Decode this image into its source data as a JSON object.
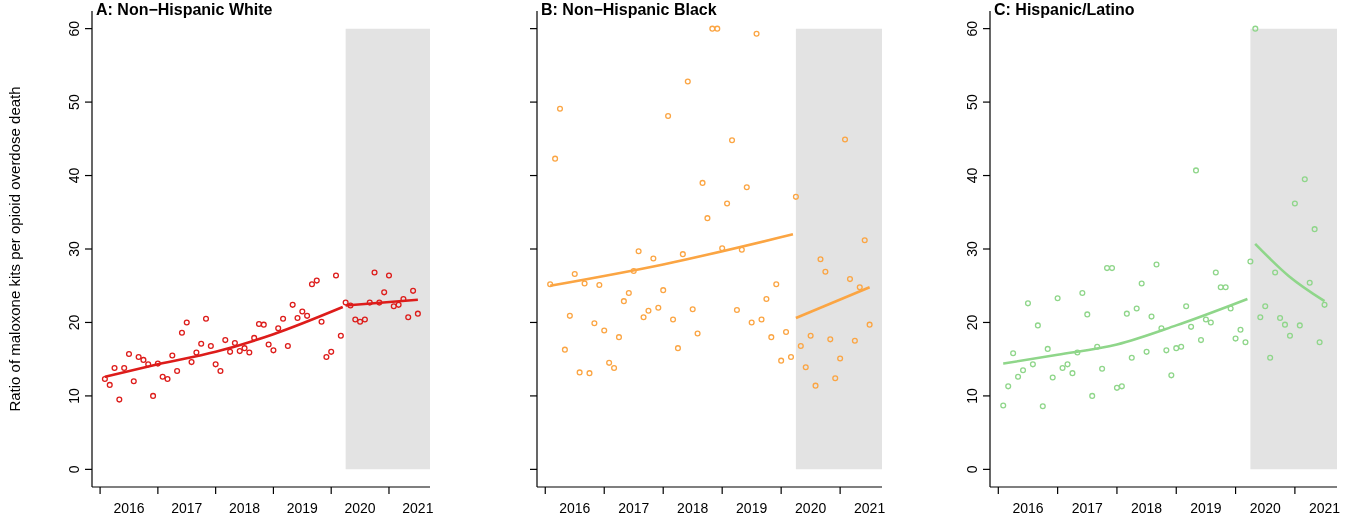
{
  "chart_data": [
    {
      "type": "scatter",
      "title": "A: Non−Hispanic White",
      "ylabel": "Ratio of maloxone kits per opioid overdose death",
      "x": [
        2016.083,
        2016.167,
        2016.25,
        2016.333,
        2016.417,
        2016.5,
        2016.583,
        2016.667,
        2016.75,
        2016.833,
        2016.917,
        2017,
        2017.083,
        2017.167,
        2017.25,
        2017.333,
        2017.417,
        2017.5,
        2017.583,
        2017.667,
        2017.75,
        2017.833,
        2017.917,
        2018,
        2018.083,
        2018.167,
        2018.25,
        2018.333,
        2018.417,
        2018.5,
        2018.583,
        2018.667,
        2018.75,
        2018.833,
        2018.917,
        2019,
        2019.083,
        2019.167,
        2019.25,
        2019.333,
        2019.417,
        2019.5,
        2019.583,
        2019.667,
        2019.75,
        2019.833,
        2019.917,
        2020,
        2020.083,
        2020.167,
        2020.25,
        2020.333,
        2020.417,
        2020.5,
        2020.583,
        2020.667,
        2020.75,
        2020.833,
        2020.917,
        2021,
        2021.083,
        2021.167,
        2021.25,
        2021.333,
        2021.417,
        2021.5
      ],
      "series": [
        {
          "marker": "circle",
          "color": "#dd1c1a",
          "values": [
            12.3,
            11.5,
            13.8,
            9.5,
            13.8,
            15.7,
            12.0,
            15.3,
            14.9,
            14.3,
            10.0,
            14.4,
            12.6,
            12.3,
            15.5,
            13.4,
            18.6,
            20.0,
            14.6,
            15.9,
            17.1,
            20.5,
            16.8,
            14.3,
            13.4,
            17.6,
            16.0,
            17.2,
            16.1,
            16.5,
            15.9,
            17.9,
            19.8,
            19.7,
            17.0,
            16.2,
            19.2,
            20.5,
            16.8,
            22.4,
            20.6,
            21.5,
            20.9,
            25.2,
            25.7,
            20.1,
            15.3,
            16.0,
            26.4,
            18.2,
            22.7,
            22.3,
            20.4,
            20.1,
            20.4,
            22.7,
            26.8,
            22.7,
            24.1,
            26.4,
            22.2,
            22.4,
            23.2,
            20.7,
            24.3,
            21.2
          ]
        },
        {
          "type": "line",
          "color": "#dd1c1a",
          "x": [
            2016.083,
            2017,
            2018,
            2019,
            2020.2
          ],
          "values": [
            12.6,
            14.3,
            16.0,
            18.4,
            22.1
          ]
        },
        {
          "type": "line",
          "color": "#dd1c1a",
          "x": [
            2020.25,
            2021.5
          ],
          "values": [
            22.3,
            23.1
          ]
        }
      ],
      "xlim": [
        2015.86,
        2021.71
      ],
      "xticks": [
        {
          "value": 2016,
          "label": null
        },
        {
          "value": 2016.5,
          "label": "2016"
        },
        {
          "value": 2017,
          "label": null
        },
        {
          "value": 2017.5,
          "label": "2017"
        },
        {
          "value": 2018,
          "label": null
        },
        {
          "value": 2018.5,
          "label": "2018"
        },
        {
          "value": 2019,
          "label": null
        },
        {
          "value": 2019.5,
          "label": "2019"
        },
        {
          "value": 2020,
          "label": null
        },
        {
          "value": 2020.5,
          "label": "2020"
        },
        {
          "value": 2021,
          "label": null
        },
        {
          "value": 2021.5,
          "label": "2021"
        }
      ],
      "ylim": [
        -2.4,
        62.4
      ],
      "yticks": [
        0,
        10,
        20,
        30,
        40,
        50,
        60
      ],
      "bands": [
        {
          "axis": "x",
          "from": 2020.25,
          "to": 2021.71,
          "color": "#e3e3e3"
        }
      ]
    },
    {
      "type": "scatter",
      "title": "B: Non−Hispanic Black",
      "tick_labels": "x",
      "x": [
        2016.083,
        2016.167,
        2016.25,
        2016.333,
        2016.417,
        2016.5,
        2016.583,
        2016.667,
        2016.75,
        2016.833,
        2016.917,
        2017,
        2017.083,
        2017.167,
        2017.25,
        2017.333,
        2017.417,
        2017.5,
        2017.583,
        2017.667,
        2017.75,
        2017.833,
        2017.917,
        2018,
        2018.083,
        2018.167,
        2018.25,
        2018.333,
        2018.417,
        2018.5,
        2018.583,
        2018.667,
        2018.75,
        2018.833,
        2018.917,
        2019,
        2019.083,
        2019.167,
        2019.25,
        2019.333,
        2019.417,
        2019.5,
        2019.583,
        2019.667,
        2019.75,
        2019.833,
        2019.917,
        2020,
        2020.083,
        2020.167,
        2020.25,
        2020.333,
        2020.417,
        2020.5,
        2020.583,
        2020.667,
        2020.75,
        2020.833,
        2020.917,
        2021,
        2021.083,
        2021.167,
        2021.25,
        2021.333,
        2021.417,
        2021.5
      ],
      "series": [
        {
          "marker": "circle",
          "color": "#fba543",
          "values": [
            25.2,
            42.3,
            49.1,
            16.3,
            20.9,
            26.6,
            13.2,
            25.3,
            13.1,
            19.9,
            25.1,
            18.9,
            14.5,
            13.8,
            18.0,
            22.9,
            24.0,
            27.0,
            29.7,
            20.7,
            21.6,
            28.7,
            22.0,
            24.4,
            48.1,
            20.4,
            16.5,
            29.3,
            52.8,
            21.8,
            18.5,
            39.0,
            34.2,
            60.0,
            60.0,
            30.1,
            36.2,
            44.8,
            21.7,
            29.9,
            38.4,
            20.0,
            59.3,
            20.4,
            23.2,
            18.0,
            25.2,
            14.8,
            18.7,
            15.3,
            37.1,
            16.8,
            13.9,
            18.2,
            11.4,
            28.6,
            26.9,
            17.7,
            12.4,
            15.1,
            44.9,
            25.9,
            17.5,
            24.8,
            31.2,
            19.7
          ]
        },
        {
          "type": "line",
          "color": "#fba543",
          "x": [
            2016.083,
            2018,
            2020.2
          ],
          "values": [
            25.0,
            27.9,
            32.0
          ]
        },
        {
          "type": "line",
          "color": "#fba543",
          "x": [
            2020.25,
            2021.5
          ],
          "values": [
            20.6,
            24.8
          ]
        }
      ],
      "xlim": [
        2015.86,
        2021.71
      ],
      "xticks": [
        {
          "value": 2016,
          "label": null
        },
        {
          "value": 2016.5,
          "label": "2016"
        },
        {
          "value": 2017,
          "label": null
        },
        {
          "value": 2017.5,
          "label": "2017"
        },
        {
          "value": 2018,
          "label": null
        },
        {
          "value": 2018.5,
          "label": "2018"
        },
        {
          "value": 2019,
          "label": null
        },
        {
          "value": 2019.5,
          "label": "2019"
        },
        {
          "value": 2020,
          "label": null
        },
        {
          "value": 2020.5,
          "label": "2020"
        },
        {
          "value": 2021,
          "label": null
        },
        {
          "value": 2021.5,
          "label": "2021"
        }
      ],
      "ylim": [
        -2.4,
        62.4
      ],
      "yticks": [
        0,
        10,
        20,
        30,
        40,
        50,
        60
      ],
      "bands": [
        {
          "axis": "x",
          "from": 2020.25,
          "to": 2021.71,
          "color": "#e3e3e3"
        }
      ]
    },
    {
      "type": "scatter",
      "title": "C: Hispanic/Latino",
      "x": [
        2016.083,
        2016.167,
        2016.25,
        2016.333,
        2016.417,
        2016.5,
        2016.583,
        2016.667,
        2016.75,
        2016.833,
        2016.917,
        2017,
        2017.083,
        2017.167,
        2017.25,
        2017.333,
        2017.417,
        2017.5,
        2017.583,
        2017.667,
        2017.75,
        2017.833,
        2017.917,
        2018,
        2018.083,
        2018.167,
        2018.25,
        2018.333,
        2018.417,
        2018.5,
        2018.583,
        2018.667,
        2018.75,
        2018.833,
        2018.917,
        2019,
        2019.083,
        2019.167,
        2019.25,
        2019.333,
        2019.417,
        2019.5,
        2019.583,
        2019.667,
        2019.75,
        2019.833,
        2019.917,
        2020,
        2020.083,
        2020.167,
        2020.25,
        2020.333,
        2020.417,
        2020.5,
        2020.583,
        2020.667,
        2020.75,
        2020.833,
        2020.917,
        2021,
        2021.083,
        2021.167,
        2021.25,
        2021.333,
        2021.417,
        2021.5
      ],
      "series": [
        {
          "marker": "circle",
          "color": "#8fd68a",
          "values": [
            8.7,
            11.3,
            15.8,
            12.6,
            13.5,
            22.6,
            14.3,
            19.6,
            8.6,
            16.4,
            12.5,
            23.3,
            13.8,
            14.3,
            13.1,
            15.9,
            24.0,
            21.1,
            10.0,
            16.7,
            13.7,
            27.4,
            27.4,
            11.1,
            11.3,
            21.2,
            15.2,
            21.9,
            25.3,
            16.0,
            20.8,
            27.9,
            19.2,
            16.2,
            12.8,
            16.5,
            16.7,
            22.2,
            19.4,
            40.7,
            17.6,
            20.4,
            20.0,
            26.8,
            24.8,
            24.8,
            21.9,
            17.8,
            19.0,
            17.3,
            28.3,
            60.0,
            20.7,
            22.2,
            15.2,
            26.8,
            20.6,
            19.7,
            18.2,
            36.2,
            19.6,
            39.5,
            25.4,
            32.7,
            17.3,
            22.4
          ]
        },
        {
          "type": "line",
          "color": "#8fd68a",
          "x": [
            2016.083,
            2017,
            2018,
            2019,
            2020.2
          ],
          "values": [
            14.4,
            15.6,
            17.0,
            19.6,
            23.2
          ]
        },
        {
          "type": "line",
          "color": "#8fd68a",
          "x": [
            2020.33,
            2020.9,
            2021.5
          ],
          "values": [
            30.7,
            26.3,
            22.9
          ]
        }
      ],
      "xlim": [
        2015.86,
        2021.71
      ],
      "xticks": [
        {
          "value": 2016,
          "label": null
        },
        {
          "value": 2016.5,
          "label": "2016"
        },
        {
          "value": 2017,
          "label": null
        },
        {
          "value": 2017.5,
          "label": "2017"
        },
        {
          "value": 2018,
          "label": null
        },
        {
          "value": 2018.5,
          "label": "2018"
        },
        {
          "value": 2019,
          "label": null
        },
        {
          "value": 2019.5,
          "label": "2019"
        },
        {
          "value": 2020,
          "label": null
        },
        {
          "value": 2020.5,
          "label": "2020"
        },
        {
          "value": 2021,
          "label": null
        },
        {
          "value": 2021.5,
          "label": "2021"
        }
      ],
      "ylim": [
        -2.4,
        62.4
      ],
      "yticks": [
        0,
        10,
        20,
        30,
        40,
        50,
        60
      ],
      "bands": [
        {
          "axis": "x",
          "from": 2020.25,
          "to": 2021.71,
          "color": "#e3e3e3"
        }
      ]
    }
  ]
}
